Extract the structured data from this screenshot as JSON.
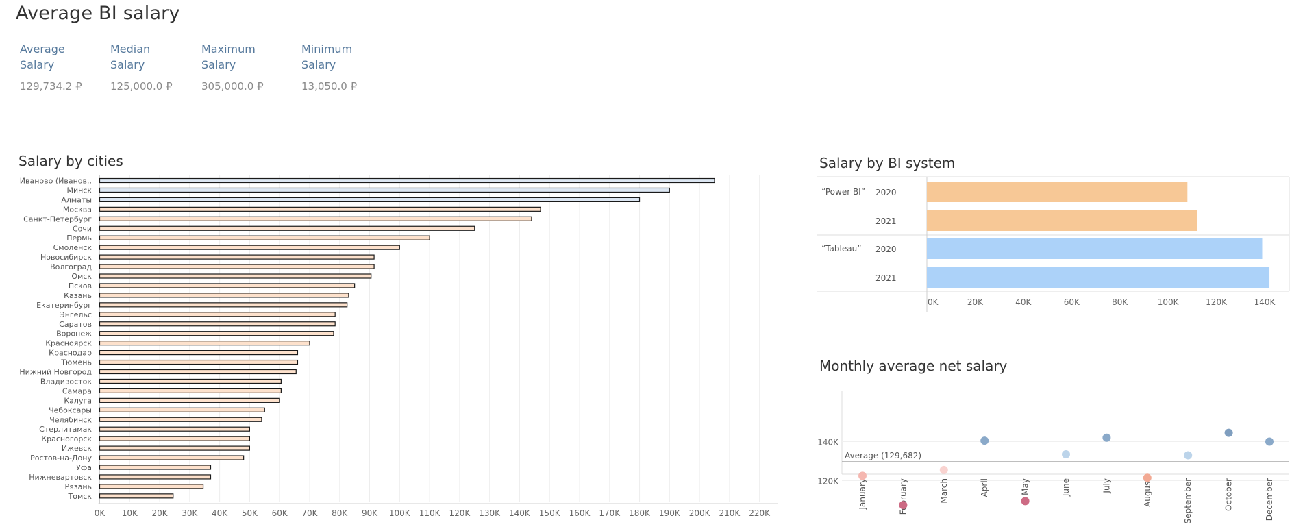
{
  "page": {
    "title": "Average BI salary"
  },
  "kpis": [
    {
      "label_1": "Average",
      "label_2": "Salary",
      "value": "129,734.2 ₽"
    },
    {
      "label_1": "Median",
      "label_2": "Salary",
      "value": "125,000.0 ₽"
    },
    {
      "label_1": "Maximum",
      "label_2": "Salary",
      "value": "305,000.0 ₽"
    },
    {
      "label_1": "Minimum",
      "label_2": "Salary",
      "value": "13,050.0 ₽"
    }
  ],
  "colors": {
    "city_high": "#dce6f2",
    "city_low": "#fde1cc",
    "power_bi": "#f7c896",
    "tableau": "#acd2f9"
  },
  "chart_data": [
    {
      "type": "bar",
      "title": "Salary by cities",
      "orientation": "horizontal",
      "categories": [
        "Иваново (Иванов..",
        "Минск",
        "Алматы",
        "Москва",
        "Санкт-Петербург",
        "Сочи",
        "Пермь",
        "Смоленск",
        "Новосибирск",
        "Волгоград",
        "Омск",
        "Псков",
        "Казань",
        "Екатеринбург",
        "Энгельс",
        "Саратов",
        "Воронеж",
        "Красноярск",
        "Краснодар",
        "Тюмень",
        "Нижний Новгород",
        "Владивосток",
        "Самара",
        "Калуга",
        "Чебоксары",
        "Челябинск",
        "Стерлитамак",
        "Красногорск",
        "Ижевск",
        "Ростов-на-Дону",
        "Уфа",
        "Нижневартовск",
        "Рязань",
        "Томск"
      ],
      "values": [
        205000,
        190000,
        180000,
        147000,
        144000,
        125000,
        110000,
        100000,
        91500,
        91500,
        90500,
        85000,
        83000,
        82500,
        78500,
        78500,
        78000,
        70000,
        66000,
        66000,
        65500,
        60500,
        60500,
        60000,
        55000,
        54000,
        50000,
        50000,
        50000,
        48000,
        37000,
        37000,
        34500,
        24500
      ],
      "xlim": [
        0,
        225000
      ],
      "ticks": [
        "0K",
        "10K",
        "20K",
        "30K",
        "40K",
        "50K",
        "60K",
        "70K",
        "80K",
        "90K",
        "100K",
        "110K",
        "120K",
        "130K",
        "140K",
        "150K",
        "160K",
        "170K",
        "180K",
        "190K",
        "200K",
        "210K",
        "220K"
      ],
      "grid": true
    },
    {
      "type": "bar",
      "title": "Salary by BI system",
      "orientation": "horizontal",
      "groups": [
        {
          "name": "“Power BI”",
          "bars": [
            {
              "year": "2020",
              "value": 108000
            },
            {
              "year": "2021",
              "value": 112000
            }
          ]
        },
        {
          "name": "“Tableau”",
          "bars": [
            {
              "year": "2020",
              "value": 139000
            },
            {
              "year": "2021",
              "value": 142000
            }
          ]
        }
      ],
      "xlim": [
        0,
        146000
      ],
      "ticks": [
        "0K",
        "20K",
        "40K",
        "60K",
        "80K",
        "100K",
        "120K",
        "140K"
      ]
    },
    {
      "type": "scatter",
      "title": "Monthly average net salary",
      "categories": [
        "January",
        "February",
        "March",
        "April",
        "May",
        "June",
        "July",
        "August",
        "September",
        "October",
        "December"
      ],
      "values": [
        122500,
        107500,
        125500,
        140500,
        109500,
        133500,
        142000,
        121500,
        133000,
        144500,
        140000
      ],
      "point_colors": [
        "#f5b7b0",
        "#cd6b84",
        "#f9d3d0",
        "#8aa9c9",
        "#cd6b84",
        "#bcd4ea",
        "#8aa9c9",
        "#f2a993",
        "#bcd4ea",
        "#7f9ebf",
        "#8aa9c9"
      ],
      "reference_line": {
        "label": "Average (129,682)",
        "value": 129682
      },
      "ylim": [
        104000,
        148000
      ],
      "y_ticks": [
        {
          "label": "140K",
          "value": 140000
        },
        {
          "label": "120K",
          "value": 120000
        }
      ]
    }
  ]
}
